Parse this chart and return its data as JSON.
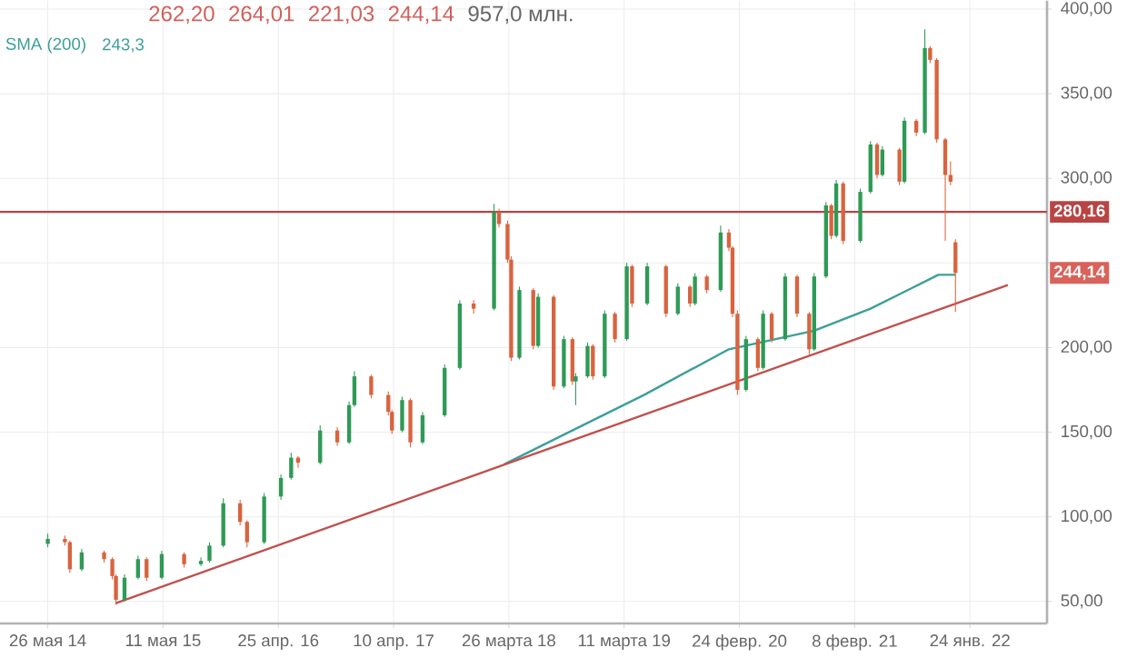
{
  "chart_data": {
    "type": "candlestick",
    "x": [
      "2014-05-26",
      "2014-07-17",
      "2014-08-01",
      "2014-09-06",
      "2014-11-13",
      "2014-12-08",
      "2014-12-19",
      "2015-01-14",
      "2015-02-24",
      "2015-03-22",
      "2015-05-07",
      "2015-07-14",
      "2015-09-03",
      "2015-09-29",
      "2015-11-10",
      "2015-12-31",
      "2016-01-21",
      "2016-03-13",
      "2016-05-03",
      "2016-06-03",
      "2016-06-24",
      "2016-08-30",
      "2016-10-21",
      "2016-11-26",
      "2016-12-12",
      "2017-02-01",
      "2017-03-25",
      "2017-04-05",
      "2017-05-06",
      "2017-05-31",
      "2017-07-07",
      "2017-09-12",
      "2017-10-28",
      "2017-12-09",
      "2018-02-09",
      "2018-02-24",
      "2018-03-22",
      "2018-04-02",
      "2018-04-27",
      "2018-06-08",
      "2018-06-23",
      "2018-08-09",
      "2018-09-09",
      "2018-10-05",
      "2018-10-15",
      "2018-11-20",
      "2018-12-06",
      "2019-01-11",
      "2019-02-11",
      "2019-03-19",
      "2019-04-04",
      "2019-05-20",
      "2019-07-16",
      "2019-08-21",
      "2019-09-27",
      "2019-10-12",
      "2019-11-17",
      "2019-12-29",
      "2020-01-23",
      "2020-02-03",
      "2020-02-18",
      "2020-03-15",
      "2020-04-20",
      "2020-05-06",
      "2020-06-01",
      "2020-07-12",
      "2020-08-17",
      "2020-09-23",
      "2020-10-08",
      "2020-11-13",
      "2020-11-29",
      "2020-12-14",
      "2021-01-04",
      "2021-02-25",
      "2021-03-28",
      "2021-04-17",
      "2021-05-03",
      "2021-06-24",
      "2021-07-09",
      "2021-08-14",
      "2021-09-09",
      "2021-09-25",
      "2021-10-15",
      "2021-11-10",
      "2021-11-26",
      "2021-12-11"
    ],
    "ohlc": [
      [
        84,
        90,
        82,
        87
      ],
      [
        87,
        89,
        83,
        85
      ],
      [
        85,
        86,
        67,
        69
      ],
      [
        69,
        81,
        68,
        79
      ],
      [
        79,
        80,
        73,
        75
      ],
      [
        75,
        76,
        63,
        65
      ],
      [
        65,
        66,
        48,
        51
      ],
      [
        51,
        66,
        50,
        64
      ],
      [
        64,
        77,
        63,
        75
      ],
      [
        75,
        76,
        62,
        64
      ],
      [
        64,
        80,
        63,
        78
      ],
      [
        78,
        79,
        70,
        72
      ],
      [
        72,
        76,
        71,
        74
      ],
      [
        74,
        85,
        73,
        83
      ],
      [
        83,
        111,
        82,
        108
      ],
      [
        108,
        110,
        95,
        97
      ],
      [
        97,
        98,
        82,
        85
      ],
      [
        85,
        114,
        84,
        112
      ],
      [
        112,
        125,
        110,
        123
      ],
      [
        123,
        138,
        122,
        135
      ],
      [
        135,
        136,
        129,
        132
      ],
      [
        132,
        154,
        131,
        151
      ],
      [
        151,
        153,
        142,
        144
      ],
      [
        144,
        168,
        143,
        166
      ],
      [
        166,
        186,
        165,
        183
      ],
      [
        183,
        184,
        170,
        172
      ],
      [
        172,
        174,
        160,
        162
      ],
      [
        162,
        163,
        149,
        151
      ],
      [
        151,
        171,
        150,
        169
      ],
      [
        169,
        170,
        141,
        144
      ],
      [
        144,
        162,
        143,
        160
      ],
      [
        160,
        190,
        159,
        188
      ],
      [
        188,
        228,
        187,
        226
      ],
      [
        226,
        228,
        220,
        223
      ],
      [
        223,
        285,
        222,
        280
      ],
      [
        280,
        282,
        271,
        273
      ],
      [
        273,
        275,
        250,
        252
      ],
      [
        252,
        254,
        192,
        194
      ],
      [
        194,
        236,
        193,
        234
      ],
      [
        234,
        235,
        199,
        201
      ],
      [
        201,
        232,
        200,
        230
      ],
      [
        230,
        231,
        175,
        177
      ],
      [
        177,
        207,
        176,
        205
      ],
      [
        205,
        206,
        178,
        180
      ],
      [
        180,
        185,
        166,
        183
      ],
      [
        183,
        203,
        182,
        201
      ],
      [
        201,
        202,
        181,
        183
      ],
      [
        183,
        222,
        182,
        220
      ],
      [
        220,
        221,
        203,
        205
      ],
      [
        205,
        250,
        204,
        248
      ],
      [
        248,
        249,
        224,
        226
      ],
      [
        226,
        250,
        225,
        248
      ],
      [
        248,
        249,
        218,
        220
      ],
      [
        220,
        238,
        219,
        236
      ],
      [
        236,
        237,
        224,
        226
      ],
      [
        226,
        244,
        225,
        242
      ],
      [
        242,
        243,
        232,
        234
      ],
      [
        234,
        272,
        233,
        268
      ],
      [
        268,
        270,
        257,
        259
      ],
      [
        259,
        260,
        218,
        220
      ],
      [
        220,
        222,
        172,
        175
      ],
      [
        175,
        207,
        174,
        205
      ],
      [
        205,
        206,
        186,
        188
      ],
      [
        188,
        222,
        187,
        220
      ],
      [
        220,
        221,
        203,
        205
      ],
      [
        205,
        244,
        204,
        242
      ],
      [
        242,
        243,
        218,
        220
      ],
      [
        220,
        221,
        196,
        199
      ],
      [
        199,
        244,
        198,
        242
      ],
      [
        242,
        286,
        241,
        284
      ],
      [
        284,
        285,
        264,
        266
      ],
      [
        266,
        299,
        265,
        297
      ],
      [
        297,
        298,
        261,
        263
      ],
      [
        263,
        294,
        262,
        292
      ],
      [
        292,
        322,
        291,
        320
      ],
      [
        320,
        321,
        300,
        302
      ],
      [
        302,
        319,
        301,
        317
      ],
      [
        317,
        318,
        296,
        298
      ],
      [
        298,
        336,
        297,
        334
      ],
      [
        334,
        335,
        325,
        327
      ],
      [
        327,
        388,
        326,
        377
      ],
      [
        377,
        378,
        368,
        370
      ],
      [
        370,
        371,
        321,
        323
      ],
      [
        323,
        324,
        263,
        302
      ],
      [
        302,
        310,
        296,
        298
      ],
      [
        262.2,
        264.01,
        221.03,
        244.14
      ]
    ],
    "series": [
      {
        "type": "line",
        "name": "SMA (200)",
        "color": "#3c9f99",
        "x": [
          "2018-03-12",
          "2018-08-24",
          "2019-05-10",
          "2020-01-23",
          "2020-10-08",
          "2021-03-28",
          "2021-07-30",
          "2021-10-20",
          "2021-12-11"
        ],
        "values": [
          131,
          147,
          172,
          199,
          210,
          223,
          235,
          243,
          243
        ]
      },
      {
        "type": "line",
        "color": "#c0504d",
        "x": [
          "2014-12-19",
          "2022-05-19"
        ],
        "values": [
          49,
          237
        ]
      }
    ],
    "xlim": [
      "2014-01-01",
      "2022-09-15"
    ],
    "xticks": [
      {
        "value": "2014-05-26",
        "label": "26 мая 14"
      },
      {
        "value": "2015-05-11",
        "label": "11 мая 15"
      },
      {
        "value": "2016-04-25",
        "label": "25 апр. 16"
      },
      {
        "value": "2017-04-10",
        "label": "10 апр. 17"
      },
      {
        "value": "2018-03-26",
        "label": "26 марта 18"
      },
      {
        "value": "2019-03-11",
        "label": "11 марта 19"
      },
      {
        "value": "2020-02-24",
        "label": "24 февр. 20"
      },
      {
        "value": "2021-02-08",
        "label": "8 февр. 21"
      },
      {
        "value": "2022-01-24",
        "label": "24 янв. 22"
      }
    ],
    "ylim": [
      37,
      405
    ],
    "yticks": [
      {
        "value": 50,
        "label": "50,00"
      },
      {
        "value": 100,
        "label": "100,00"
      },
      {
        "value": 150,
        "label": "150,00"
      },
      {
        "value": 200,
        "label": "200,00"
      },
      {
        "value": 250,
        "label": null
      },
      {
        "value": 300,
        "label": "300,00"
      },
      {
        "value": 350,
        "label": "350,00"
      },
      {
        "value": 400,
        "label": "400,00"
      }
    ],
    "grid": true,
    "ref_lines": [
      {
        "axis": "y",
        "value": 280.16,
        "label": "280,16",
        "color": "#b84444"
      }
    ],
    "annotations": [
      "262,20",
      "264,01",
      "221,03",
      "244,14",
      "957,0 млн.",
      "243,3",
      "244,14"
    ]
  }
}
